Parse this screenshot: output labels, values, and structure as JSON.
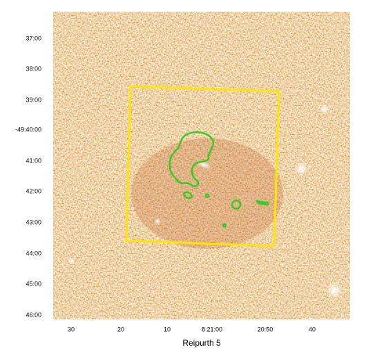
{
  "title": "Reipurth 5",
  "y_axis_labels": [
    "37:00",
    "38:00",
    "39:00",
    "-49:40:00",
    "41:00",
    "42:00",
    "43:00",
    "44:00",
    "45:00",
    "46:00"
  ],
  "x_axis_labels": [
    "30",
    "20",
    "10",
    "8:21:00",
    "20:50",
    "40"
  ]
}
